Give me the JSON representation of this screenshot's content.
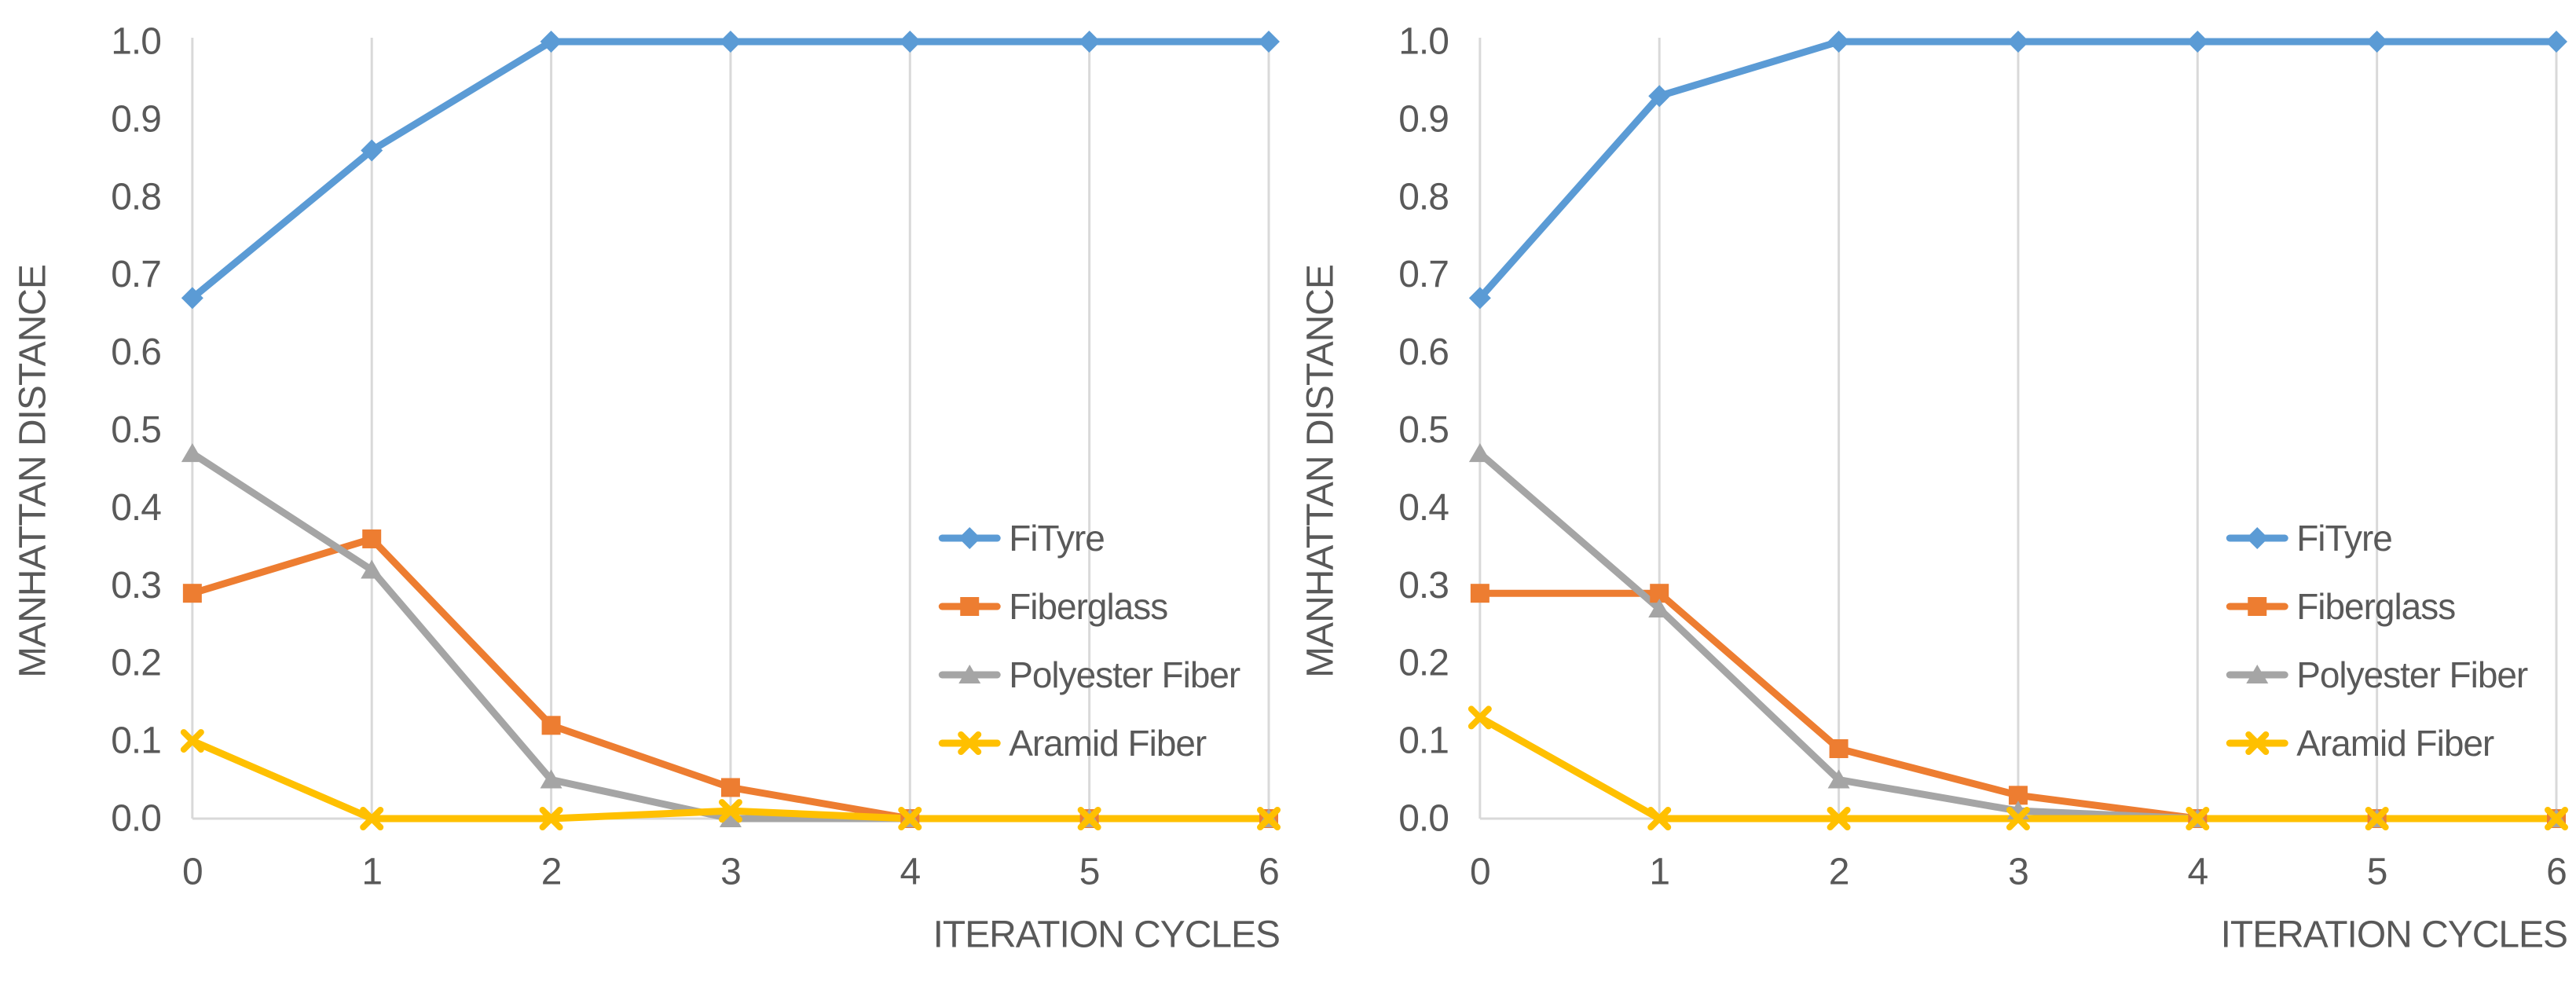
{
  "page": {
    "background": "#FFFFFF"
  },
  "styles": {
    "text_color": "#595959",
    "grid_color": "#D9D9D9",
    "axis_color": "#D9D9D9",
    "series_line_width": 9,
    "tick_font_size": 48,
    "title_font_size": 48,
    "legend_font_size": 46
  },
  "chart_data": [
    {
      "type": "line",
      "title": "",
      "xlabel": "ITERATION CYCLES",
      "ylabel": "MANHATTAN DISTANCE",
      "x": [
        0,
        1,
        2,
        3,
        4,
        5,
        6
      ],
      "xtick_labels": [
        "0",
        "1",
        "2",
        "3",
        "4",
        "5",
        "6"
      ],
      "ytick_labels": [
        "0.0",
        "0.1",
        "0.2",
        "0.3",
        "0.4",
        "0.5",
        "0.6",
        "0.7",
        "0.8",
        "0.9",
        "1.0"
      ],
      "ylim": [
        0.0,
        1.0
      ],
      "grid": "vertical-only",
      "legend_position": "inside-right",
      "series": [
        {
          "name": "FiTyre",
          "color": "#5B9BD5",
          "marker": "diamond",
          "values": [
            0.67,
            0.86,
            1.0,
            1.0,
            1.0,
            1.0,
            1.0
          ]
        },
        {
          "name": "Fiberglass",
          "color": "#ED7D31",
          "marker": "square",
          "values": [
            0.29,
            0.36,
            0.12,
            0.04,
            0.0,
            0.0,
            0.0
          ]
        },
        {
          "name": "Polyester Fiber",
          "color": "#A5A5A5",
          "marker": "triangle",
          "values": [
            0.47,
            0.32,
            0.05,
            0.0,
            0.0,
            0.0,
            0.0
          ]
        },
        {
          "name": "Aramid Fiber",
          "color": "#FFC000",
          "marker": "x",
          "values": [
            0.1,
            0.0,
            0.0,
            0.01,
            0.0,
            0.0,
            0.0
          ]
        }
      ]
    },
    {
      "type": "line",
      "title": "",
      "xlabel": "ITERATION CYCLES",
      "ylabel": "MANHATTAN DISTANCE",
      "x": [
        0,
        1,
        2,
        3,
        4,
        5,
        6
      ],
      "xtick_labels": [
        "0",
        "1",
        "2",
        "3",
        "4",
        "5",
        "6"
      ],
      "ytick_labels": [
        "0.0",
        "0.1",
        "0.2",
        "0.3",
        "0.4",
        "0.5",
        "0.6",
        "0.7",
        "0.8",
        "0.9",
        "1.0"
      ],
      "ylim": [
        0.0,
        1.0
      ],
      "grid": "vertical-only",
      "legend_position": "inside-right",
      "series": [
        {
          "name": "FiTyre",
          "color": "#5B9BD5",
          "marker": "diamond",
          "values": [
            0.67,
            0.93,
            1.0,
            1.0,
            1.0,
            1.0,
            1.0
          ]
        },
        {
          "name": "Fiberglass",
          "color": "#ED7D31",
          "marker": "square",
          "values": [
            0.29,
            0.29,
            0.09,
            0.03,
            0.0,
            0.0,
            0.0
          ]
        },
        {
          "name": "Polyester Fiber",
          "color": "#A5A5A5",
          "marker": "triangle",
          "values": [
            0.47,
            0.27,
            0.05,
            0.01,
            0.0,
            0.0,
            0.0
          ]
        },
        {
          "name": "Aramid Fiber",
          "color": "#FFC000",
          "marker": "x",
          "values": [
            0.13,
            0.0,
            0.0,
            0.0,
            0.0,
            0.0,
            0.0
          ]
        }
      ]
    }
  ]
}
